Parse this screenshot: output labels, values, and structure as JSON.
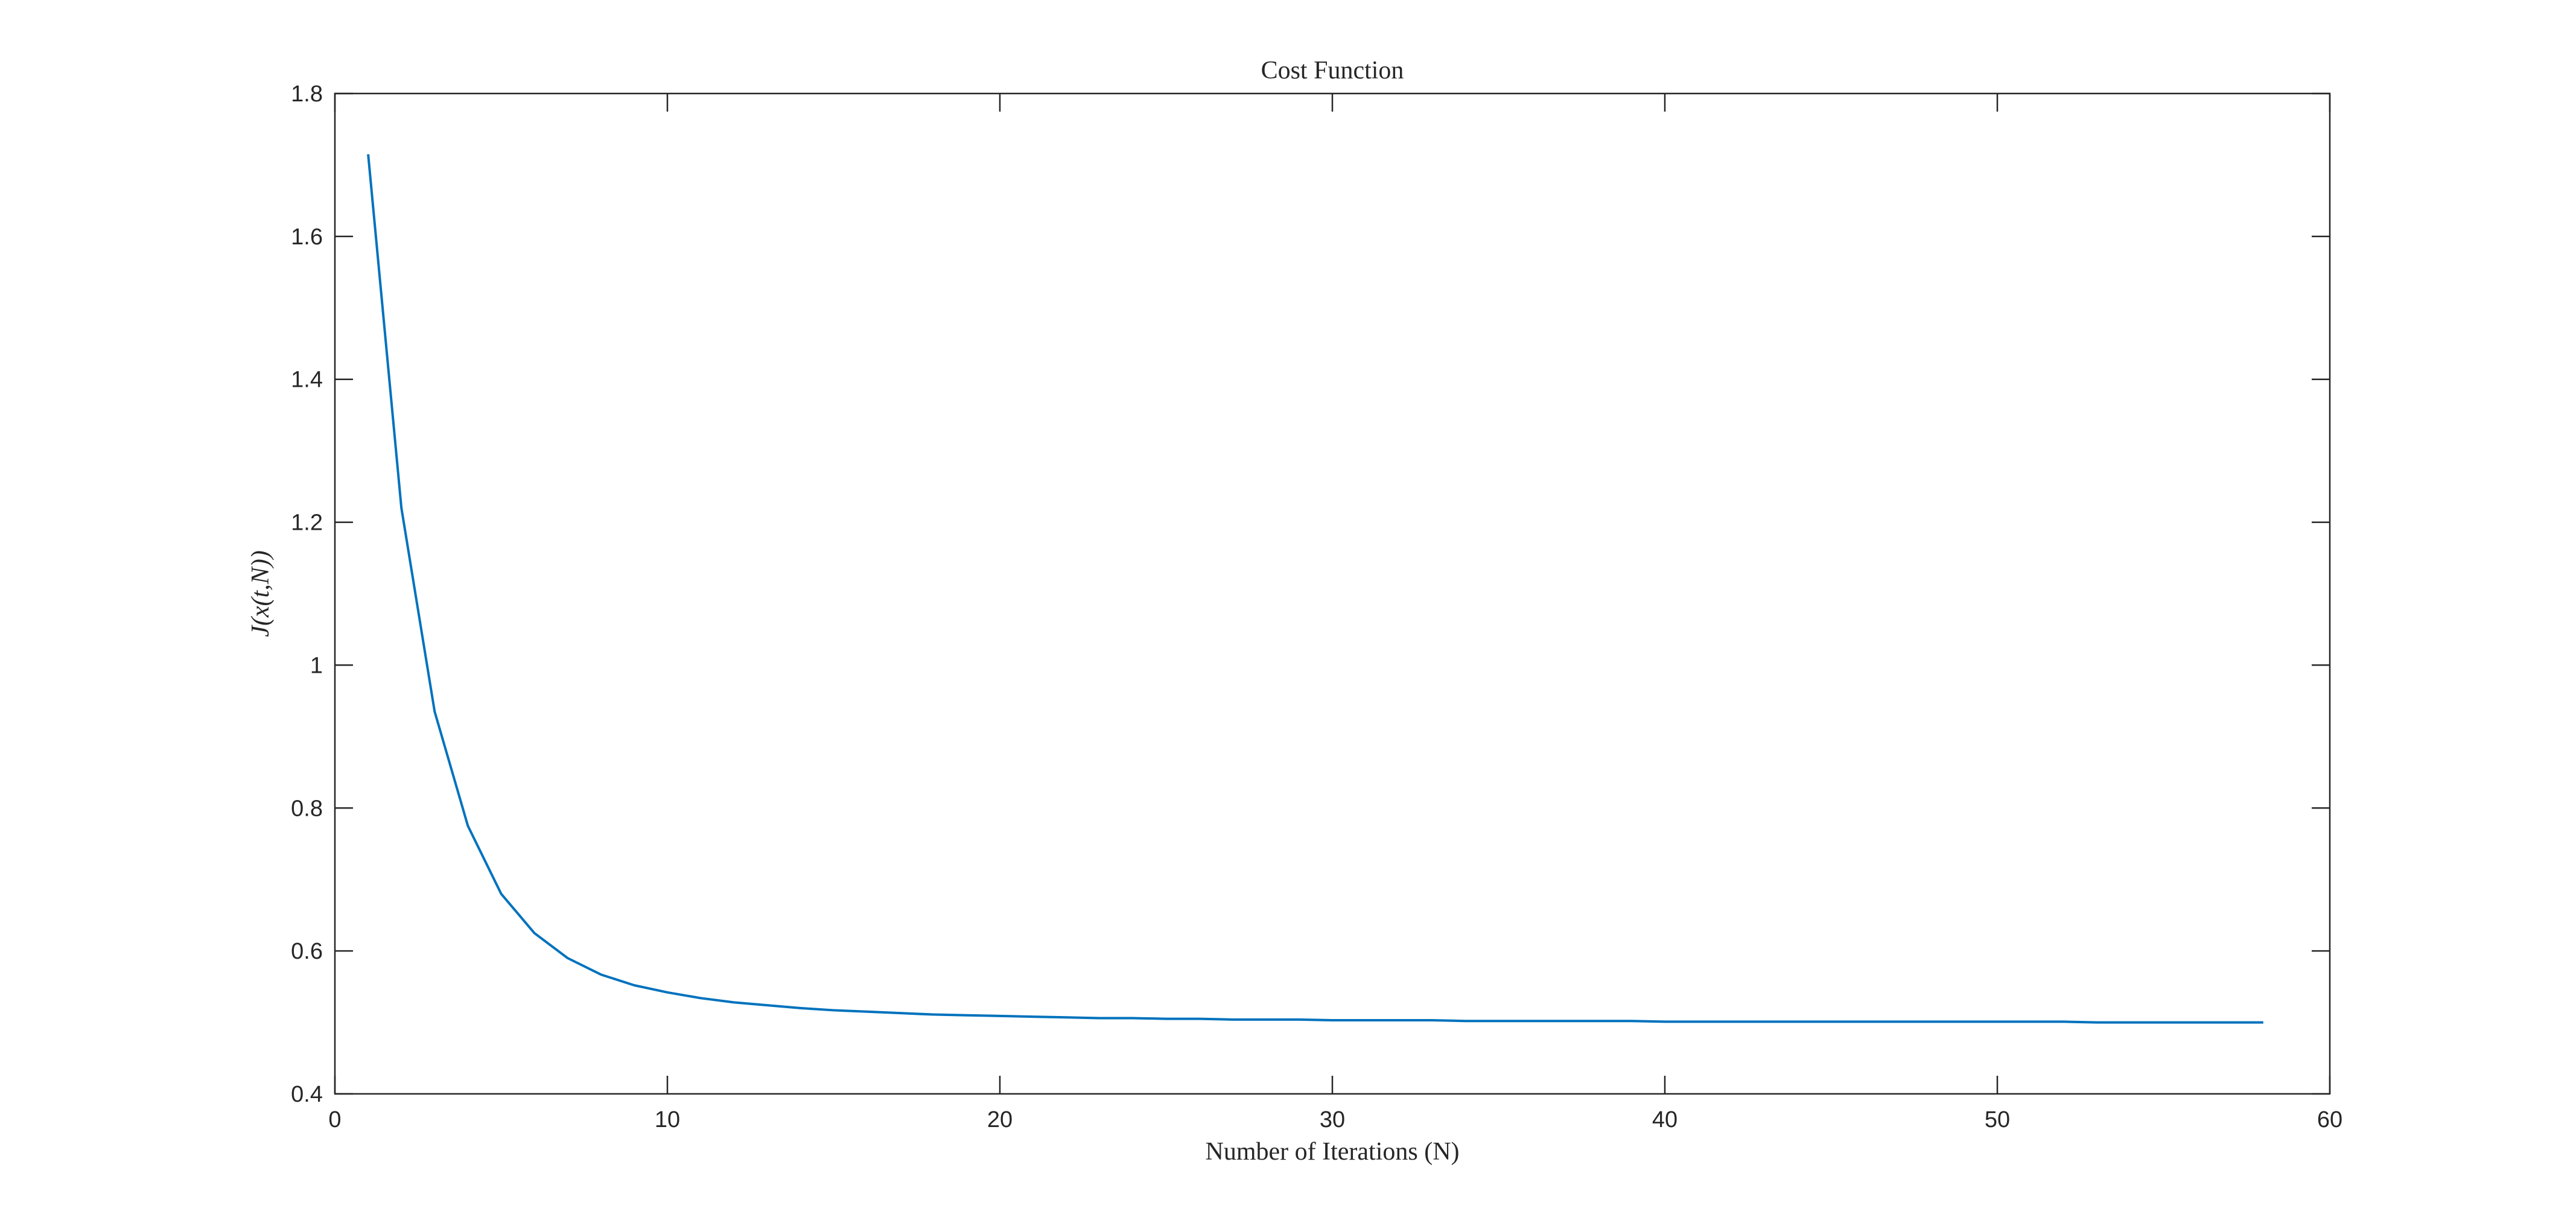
{
  "chart_data": {
    "type": "line",
    "title": "Cost Function",
    "xlabel": "Number of Iterations (N)",
    "ylabel": "J(x(t,N))",
    "x": [
      1,
      2,
      3,
      4,
      5,
      6,
      7,
      8,
      9,
      10,
      11,
      12,
      13,
      14,
      15,
      16,
      17,
      18,
      19,
      20,
      21,
      22,
      23,
      24,
      25,
      26,
      27,
      28,
      29,
      30,
      31,
      32,
      33,
      34,
      35,
      36,
      37,
      38,
      39,
      40,
      41,
      42,
      43,
      44,
      45,
      46,
      47,
      48,
      49,
      50,
      51,
      52,
      53,
      54,
      55,
      56,
      57,
      58
    ],
    "values": [
      1.715,
      1.22,
      0.935,
      0.775,
      0.68,
      0.625,
      0.59,
      0.567,
      0.552,
      0.542,
      0.534,
      0.528,
      0.524,
      0.52,
      0.517,
      0.515,
      0.513,
      0.511,
      0.51,
      0.509,
      0.508,
      0.507,
      0.506,
      0.506,
      0.505,
      0.505,
      0.504,
      0.504,
      0.504,
      0.503,
      0.503,
      0.503,
      0.503,
      0.502,
      0.502,
      0.502,
      0.502,
      0.502,
      0.502,
      0.501,
      0.501,
      0.501,
      0.501,
      0.501,
      0.501,
      0.501,
      0.501,
      0.501,
      0.501,
      0.501,
      0.501,
      0.501,
      0.5,
      0.5,
      0.5,
      0.5,
      0.5,
      0.5
    ],
    "color": "#0072bd",
    "xlim": [
      0,
      60
    ],
    "xticks": [
      0,
      10,
      20,
      30,
      40,
      50,
      60
    ],
    "ylim": [
      0.4,
      1.8
    ],
    "yticks": [
      0.4,
      0.6,
      0.8,
      1,
      1.2,
      1.4,
      1.6,
      1.8
    ],
    "grid": false
  }
}
